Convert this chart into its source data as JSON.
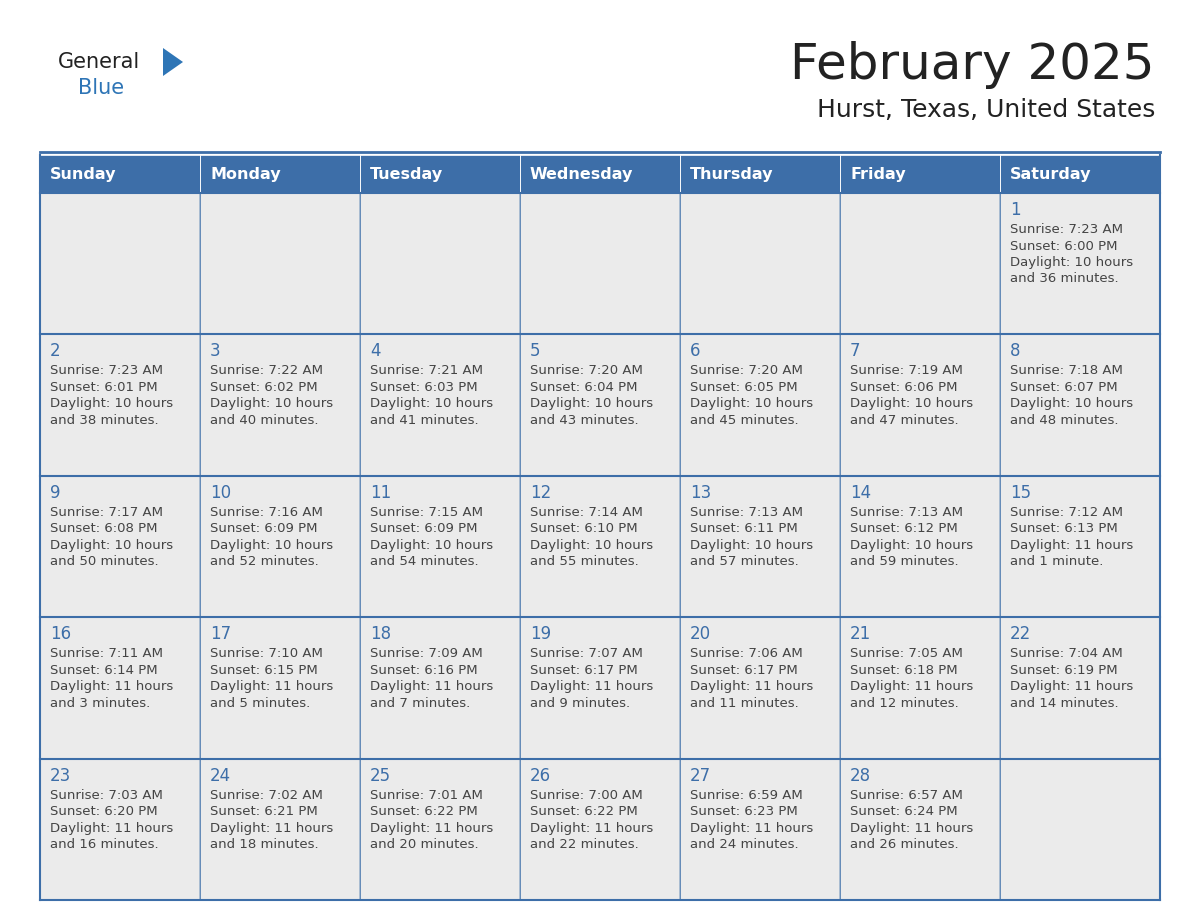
{
  "title": "February 2025",
  "subtitle": "Hurst, Texas, United States",
  "days_of_week": [
    "Sunday",
    "Monday",
    "Tuesday",
    "Wednesday",
    "Thursday",
    "Friday",
    "Saturday"
  ],
  "header_bg": "#3D6EA8",
  "header_text": "#FFFFFF",
  "cell_bg_light": "#EBEBEB",
  "cell_bg_white": "#FFFFFF",
  "border_color": "#3D6EA8",
  "day_number_color": "#3D6EA8",
  "text_color": "#444444",
  "title_color": "#222222",
  "logo_general_color": "#222222",
  "logo_blue_color": "#2E75B6",
  "calendar_data": [
    [
      null,
      null,
      null,
      null,
      null,
      null,
      {
        "day": 1,
        "sunrise": "7:23 AM",
        "sunset": "6:00 PM",
        "daylight": "10 hours\nand 36 minutes."
      }
    ],
    [
      {
        "day": 2,
        "sunrise": "7:23 AM",
        "sunset": "6:01 PM",
        "daylight": "10 hours\nand 38 minutes."
      },
      {
        "day": 3,
        "sunrise": "7:22 AM",
        "sunset": "6:02 PM",
        "daylight": "10 hours\nand 40 minutes."
      },
      {
        "day": 4,
        "sunrise": "7:21 AM",
        "sunset": "6:03 PM",
        "daylight": "10 hours\nand 41 minutes."
      },
      {
        "day": 5,
        "sunrise": "7:20 AM",
        "sunset": "6:04 PM",
        "daylight": "10 hours\nand 43 minutes."
      },
      {
        "day": 6,
        "sunrise": "7:20 AM",
        "sunset": "6:05 PM",
        "daylight": "10 hours\nand 45 minutes."
      },
      {
        "day": 7,
        "sunrise": "7:19 AM",
        "sunset": "6:06 PM",
        "daylight": "10 hours\nand 47 minutes."
      },
      {
        "day": 8,
        "sunrise": "7:18 AM",
        "sunset": "6:07 PM",
        "daylight": "10 hours\nand 48 minutes."
      }
    ],
    [
      {
        "day": 9,
        "sunrise": "7:17 AM",
        "sunset": "6:08 PM",
        "daylight": "10 hours\nand 50 minutes."
      },
      {
        "day": 10,
        "sunrise": "7:16 AM",
        "sunset": "6:09 PM",
        "daylight": "10 hours\nand 52 minutes."
      },
      {
        "day": 11,
        "sunrise": "7:15 AM",
        "sunset": "6:09 PM",
        "daylight": "10 hours\nand 54 minutes."
      },
      {
        "day": 12,
        "sunrise": "7:14 AM",
        "sunset": "6:10 PM",
        "daylight": "10 hours\nand 55 minutes."
      },
      {
        "day": 13,
        "sunrise": "7:13 AM",
        "sunset": "6:11 PM",
        "daylight": "10 hours\nand 57 minutes."
      },
      {
        "day": 14,
        "sunrise": "7:13 AM",
        "sunset": "6:12 PM",
        "daylight": "10 hours\nand 59 minutes."
      },
      {
        "day": 15,
        "sunrise": "7:12 AM",
        "sunset": "6:13 PM",
        "daylight": "11 hours\nand 1 minute."
      }
    ],
    [
      {
        "day": 16,
        "sunrise": "7:11 AM",
        "sunset": "6:14 PM",
        "daylight": "11 hours\nand 3 minutes."
      },
      {
        "day": 17,
        "sunrise": "7:10 AM",
        "sunset": "6:15 PM",
        "daylight": "11 hours\nand 5 minutes."
      },
      {
        "day": 18,
        "sunrise": "7:09 AM",
        "sunset": "6:16 PM",
        "daylight": "11 hours\nand 7 minutes."
      },
      {
        "day": 19,
        "sunrise": "7:07 AM",
        "sunset": "6:17 PM",
        "daylight": "11 hours\nand 9 minutes."
      },
      {
        "day": 20,
        "sunrise": "7:06 AM",
        "sunset": "6:17 PM",
        "daylight": "11 hours\nand 11 minutes."
      },
      {
        "day": 21,
        "sunrise": "7:05 AM",
        "sunset": "6:18 PM",
        "daylight": "11 hours\nand 12 minutes."
      },
      {
        "day": 22,
        "sunrise": "7:04 AM",
        "sunset": "6:19 PM",
        "daylight": "11 hours\nand 14 minutes."
      }
    ],
    [
      {
        "day": 23,
        "sunrise": "7:03 AM",
        "sunset": "6:20 PM",
        "daylight": "11 hours\nand 16 minutes."
      },
      {
        "day": 24,
        "sunrise": "7:02 AM",
        "sunset": "6:21 PM",
        "daylight": "11 hours\nand 18 minutes."
      },
      {
        "day": 25,
        "sunrise": "7:01 AM",
        "sunset": "6:22 PM",
        "daylight": "11 hours\nand 20 minutes."
      },
      {
        "day": 26,
        "sunrise": "7:00 AM",
        "sunset": "6:22 PM",
        "daylight": "11 hours\nand 22 minutes."
      },
      {
        "day": 27,
        "sunrise": "6:59 AM",
        "sunset": "6:23 PM",
        "daylight": "11 hours\nand 24 minutes."
      },
      {
        "day": 28,
        "sunrise": "6:57 AM",
        "sunset": "6:24 PM",
        "daylight": "11 hours\nand 26 minutes."
      },
      null
    ]
  ]
}
